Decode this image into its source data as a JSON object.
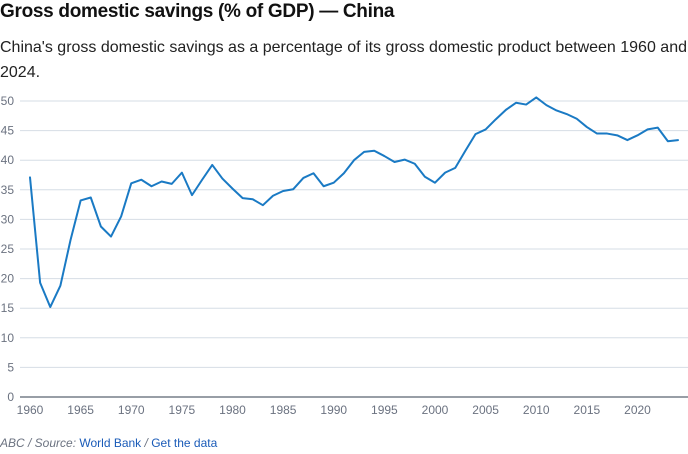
{
  "header": {
    "title": "Gross domestic savings (% of GDP) — China",
    "subtitle": "China's gross domestic savings as a percentage of its gross domestic product between 1960 and 2024."
  },
  "footer": {
    "prefix": "ABC / Source:",
    "source_link": "World Bank",
    "separator": "/",
    "data_link": "Get the data"
  },
  "colors": {
    "line": "#1a7ac4",
    "grid": "#d6dde5",
    "axis": "#5b6470"
  },
  "chart_data": {
    "type": "line",
    "title": "Gross domestic savings (% of GDP) — China",
    "xlabel": "",
    "ylabel": "",
    "xlim": [
      1960,
      2024
    ],
    "ylim": [
      0,
      50
    ],
    "grid": true,
    "legend": "none",
    "x_ticks": [
      1960,
      1965,
      1970,
      1975,
      1980,
      1985,
      1990,
      1995,
      2000,
      2005,
      2010,
      2015,
      2020
    ],
    "y_ticks": [
      0,
      5,
      10,
      15,
      20,
      25,
      30,
      35,
      40,
      45,
      50
    ],
    "series": [
      {
        "name": "China",
        "x": [
          1960,
          1961,
          1962,
          1963,
          1964,
          1965,
          1966,
          1967,
          1968,
          1969,
          1970,
          1971,
          1972,
          1973,
          1974,
          1975,
          1976,
          1977,
          1978,
          1979,
          1980,
          1981,
          1982,
          1983,
          1984,
          1985,
          1986,
          1987,
          1988,
          1989,
          1990,
          1991,
          1992,
          1993,
          1994,
          1995,
          1996,
          1997,
          1998,
          1999,
          2000,
          2001,
          2002,
          2003,
          2004,
          2005,
          2006,
          2007,
          2008,
          2009,
          2010,
          2011,
          2012,
          2013,
          2014,
          2015,
          2016,
          2017,
          2018,
          2019,
          2020,
          2021,
          2022,
          2023,
          2024
        ],
        "values": [
          37.1,
          19.3,
          15.2,
          18.8,
          26.5,
          33.2,
          33.7,
          28.8,
          27.1,
          30.5,
          36.1,
          36.7,
          35.6,
          36.4,
          36.0,
          37.9,
          34.1,
          36.7,
          39.2,
          36.9,
          35.2,
          33.6,
          33.4,
          32.4,
          34.0,
          34.8,
          35.1,
          37.0,
          37.8,
          35.6,
          36.2,
          37.8,
          40.0,
          41.4,
          41.6,
          40.7,
          39.7,
          40.1,
          39.4,
          37.2,
          36.2,
          37.9,
          38.7,
          41.6,
          44.4,
          45.2,
          46.9,
          48.5,
          49.7,
          49.4,
          50.6,
          49.3,
          48.4,
          47.8,
          47.0,
          45.6,
          44.5,
          44.5,
          44.2,
          43.4,
          44.2,
          45.2,
          45.5,
          43.2,
          43.4
        ]
      }
    ]
  }
}
